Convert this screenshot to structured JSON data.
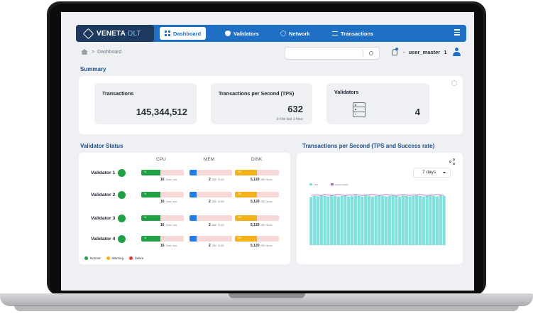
{
  "brand": {
    "name": "VENETA",
    "suffix": "DLT"
  },
  "nav": {
    "items": [
      {
        "label": "Dashboard",
        "icon": "dashboard-icon",
        "active": true
      },
      {
        "label": "Validators",
        "icon": "shield-check-icon",
        "active": false
      },
      {
        "label": "Network",
        "icon": "network-icon",
        "active": false
      },
      {
        "label": "Transactions",
        "icon": "exchange-icon",
        "active": false
      }
    ],
    "menu_icon": "menu-icon"
  },
  "breadcrumb": {
    "separator": ">",
    "current": "Dashboard"
  },
  "search": {
    "placeholder": ""
  },
  "user": {
    "name": "user_master",
    "count": "1",
    "prefix": "-"
  },
  "summary": {
    "title": "Summary",
    "cards": {
      "transactions": {
        "label": "Transactions",
        "value": "145,344,512"
      },
      "tps": {
        "label": "Transactions per Second (TPS)",
        "value": "632",
        "sub": "In the last 1 hour"
      },
      "validators": {
        "label": "Validators",
        "value": "4"
      }
    }
  },
  "validator_status": {
    "title": "Validator Status",
    "columns": [
      "CPU",
      "MEM",
      "DISK"
    ],
    "rows": [
      {
        "name": "Validator 1",
        "cpu_pct": 0.45,
        "cpu_text": "%",
        "cpu_value": "16",
        "cpu_unit": "Core / ccc",
        "mem_pct": 0.16,
        "mem_value": "2",
        "mem_unit": "GB / 1,024",
        "disk_pct": 0.5,
        "disk_text": "3%",
        "disk_value": "5,120",
        "disk_unit": "GB / 8,xxx"
      },
      {
        "name": "Validator 2",
        "cpu_pct": 0.45,
        "cpu_text": "%",
        "cpu_value": "16",
        "cpu_unit": "Core / ccc",
        "mem_pct": 0.16,
        "mem_value": "2",
        "mem_unit": "GB / 1,024",
        "disk_pct": 0.5,
        "disk_text": "3%",
        "disk_value": "5,120",
        "disk_unit": "GB / 8,xxx"
      },
      {
        "name": "Validator 3",
        "cpu_pct": 0.45,
        "cpu_text": "%",
        "cpu_value": "16",
        "cpu_unit": "Core / ccc",
        "mem_pct": 0.16,
        "mem_value": "2",
        "mem_unit": "GB / 1,024",
        "disk_pct": 0.5,
        "disk_text": "3%",
        "disk_value": "5,120",
        "disk_unit": "GB / 8,xxx"
      },
      {
        "name": "Validator 4",
        "cpu_pct": 0.45,
        "cpu_text": "%",
        "cpu_value": "16",
        "cpu_unit": "Core / ccc",
        "mem_pct": 0.16,
        "mem_value": "2",
        "mem_unit": "GB / 1,024",
        "disk_pct": 0.5,
        "disk_text": "3%",
        "disk_value": "5,120",
        "disk_unit": "GB / 8,xxx"
      }
    ],
    "legend": [
      {
        "label": "Normal",
        "color": "#22a046"
      },
      {
        "label": "Warning",
        "color": "#f3b21b"
      },
      {
        "label": "failure",
        "color": "#e53935"
      }
    ],
    "colors": {
      "normal": "#22a046",
      "cpu": "#22a046",
      "mem": "#1f7ee8",
      "disk": "#f3b21b",
      "track": "#f6d8d8"
    }
  },
  "tps_chart": {
    "title": "Transactions per Second (TPS and Success rate)",
    "range_select": "7 days",
    "share_icon": "share-icon"
  },
  "chart_data": {
    "type": "bar",
    "series": [
      {
        "name": "TPS",
        "color": "#7fe0dc",
        "values": [
          0.94,
          0.96,
          0.95,
          0.97,
          0.96,
          0.95,
          0.97,
          0.96,
          0.95,
          0.96,
          0.97,
          0.95,
          0.96,
          0.97,
          0.96,
          0.95,
          0.97,
          0.96,
          0.95,
          0.96,
          0.97,
          0.96,
          0.95,
          0.96,
          0.97,
          0.96,
          0.95,
          0.97,
          0.96,
          0.95,
          0.96,
          0.97,
          0.96,
          0.95,
          0.96,
          0.97,
          0.96,
          0.95,
          0.97,
          0.96
        ]
      },
      {
        "name": "Success Rate",
        "color": "#b05cc8",
        "values": [
          0.97,
          0.98,
          0.98,
          0.97,
          0.99,
          0.98,
          0.97,
          0.98,
          0.99,
          0.98,
          0.97,
          0.98,
          0.98,
          0.99,
          0.98,
          0.97,
          0.98,
          0.98,
          0.99,
          0.98,
          0.97,
          0.98,
          0.99,
          0.98,
          0.98,
          0.97,
          0.98,
          0.99,
          0.98,
          0.97,
          0.98,
          0.98,
          0.99,
          0.98,
          0.97,
          0.98,
          0.98,
          0.99,
          0.98,
          0.97
        ]
      }
    ],
    "ylim": [
      0,
      1
    ],
    "grid": true,
    "legend_position": "top-left"
  }
}
